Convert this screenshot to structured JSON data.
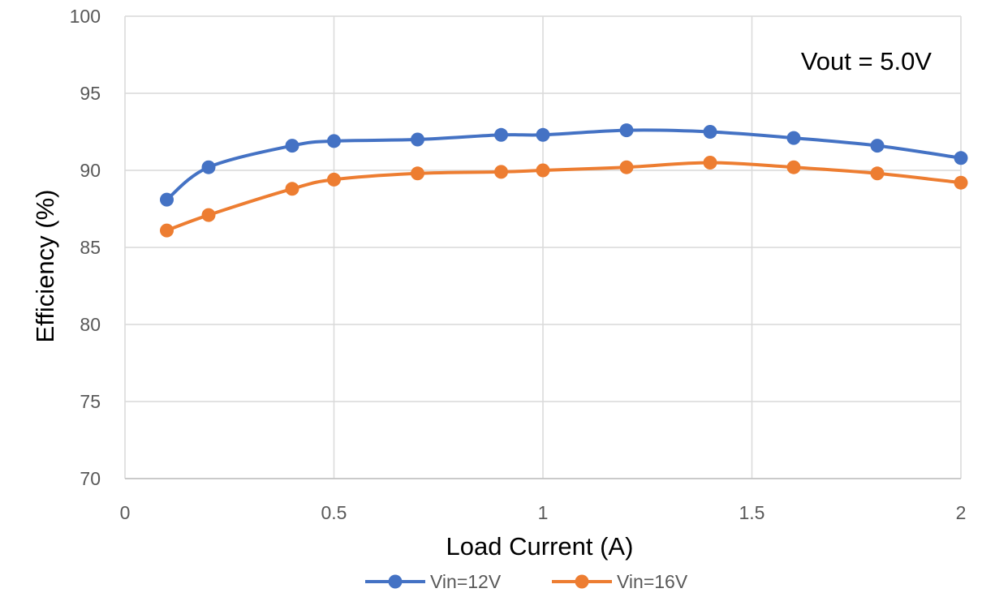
{
  "chart_data": {
    "type": "line",
    "title": "",
    "xlabel": "Load Current (A)",
    "ylabel": "Efficiency (%)",
    "annotation": "Vout = 5.0V",
    "xlim": [
      0,
      2
    ],
    "ylim": [
      70,
      100
    ],
    "x_ticks": [
      0,
      0.5,
      1,
      1.5,
      2
    ],
    "x_tick_labels": [
      "0",
      "0.5",
      "1",
      "1.5",
      "2"
    ],
    "y_ticks": [
      70,
      75,
      80,
      85,
      90,
      95,
      100
    ],
    "y_tick_labels": [
      "70",
      "75",
      "80",
      "85",
      "90",
      "95",
      "100"
    ],
    "grid": true,
    "legend_position": "bottom",
    "series": [
      {
        "name": "Vin=12V",
        "color": "#4472C4",
        "x": [
          0.1,
          0.2,
          0.4,
          0.5,
          0.7,
          0.9,
          1.0,
          1.2,
          1.4,
          1.6,
          1.8,
          2.0
        ],
        "y": [
          88.1,
          90.2,
          91.6,
          91.9,
          92.0,
          92.3,
          92.3,
          92.6,
          92.5,
          92.1,
          91.6,
          90.8
        ]
      },
      {
        "name": "Vin=16V",
        "color": "#ED7D31",
        "x": [
          0.1,
          0.2,
          0.4,
          0.5,
          0.7,
          0.9,
          1.0,
          1.2,
          1.4,
          1.6,
          1.8,
          2.0
        ],
        "y": [
          86.1,
          87.1,
          88.8,
          89.4,
          89.8,
          89.9,
          90.0,
          90.2,
          90.5,
          90.2,
          89.8,
          89.2
        ]
      }
    ]
  }
}
